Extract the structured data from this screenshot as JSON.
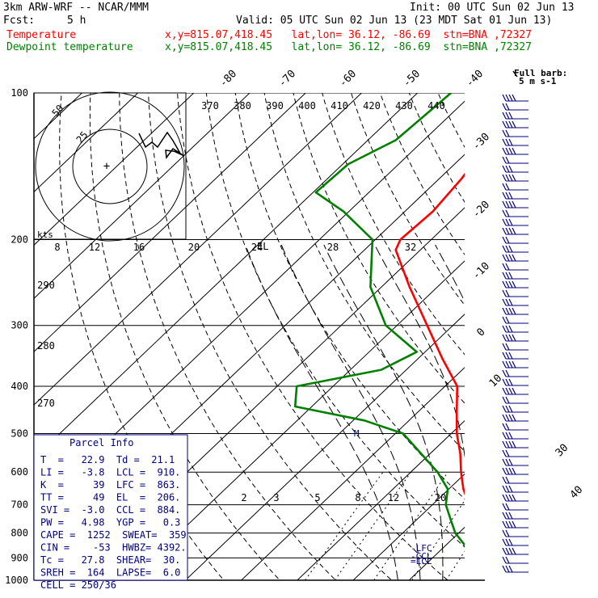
{
  "header": {
    "model": "3km ARW-WRF -- NCAR/MMM",
    "init": "Init: 00 UTC Sun 02 Jun 13",
    "fcst_label": "Fcst:",
    "fcst_value": "5 h",
    "valid": "Valid: 05 UTC Sun 02 Jun 13 (23 MDT Sat 01 Jun 13)",
    "temp_label": "Temperature",
    "temp_loc": "x,y=815.07,418.45   lat,lon= 36.12, -86.69  stn=BNA ,72327",
    "dew_label": "Dewpoint temperature",
    "dew_loc": "x,y=815.07,418.45   lat,lon= 36.12, -86.69  stn=BNA ,72327"
  },
  "colors": {
    "temperature": "#ff0000",
    "dewpoint": "#008000",
    "info": "#000080",
    "grid": "#000000"
  },
  "chart_data": {
    "type": "skew-t",
    "pressure_levels": [
      "100",
      "200",
      "300",
      "400",
      "500",
      "600",
      "700",
      "800",
      "900",
      "1000"
    ],
    "top_labels": [
      "-80",
      "-70",
      "-60",
      "-50",
      "-40"
    ],
    "right_labels": [
      "-30",
      "-20",
      "-10",
      "0",
      "10",
      "30",
      "40"
    ],
    "theta_labels": [
      "370",
      "380",
      "390",
      "400",
      "410",
      "420",
      "430",
      "440"
    ],
    "theta_left_labels": [
      "290",
      "280",
      "270"
    ],
    "hodo_speed_labels": [
      "8",
      "12",
      "16",
      "20",
      "24",
      "28",
      "32"
    ],
    "hodo_units": "kts",
    "hodo_rings": [
      "50",
      "25"
    ],
    "mixing_labels": [
      "2",
      "3",
      "5",
      "8",
      "12",
      "20"
    ],
    "barb_legend": [
      "Full barb:",
      "5 m s-1"
    ],
    "markers": {
      "el": "EL",
      "lfc": "LFC",
      "lcl": "LCL",
      "ccl": "CCL",
      "m": "M"
    },
    "temperature": [
      {
        "p": 1000,
        "t": 21.6
      },
      {
        "p": 970,
        "t": 22.9
      },
      {
        "p": 950,
        "t": 22.0
      },
      {
        "p": 925,
        "t": 20.6
      },
      {
        "p": 900,
        "t": 18.6
      },
      {
        "p": 850,
        "t": 15.4
      },
      {
        "p": 800,
        "t": 12.4
      },
      {
        "p": 750,
        "t": 9.6
      },
      {
        "p": 700,
        "t": 6.6
      },
      {
        "p": 650,
        "t": 2.6
      },
      {
        "p": 600,
        "t": -1.0
      },
      {
        "p": 550,
        "t": -4.6
      },
      {
        "p": 500,
        "t": -9.0
      },
      {
        "p": 450,
        "t": -13.2
      },
      {
        "p": 400,
        "t": -17.8
      },
      {
        "p": 350,
        "t": -25.8
      },
      {
        "p": 300,
        "t": -34.6
      },
      {
        "p": 250,
        "t": -45.0
      },
      {
        "p": 210,
        "t": -54.4
      },
      {
        "p": 200,
        "t": -55.5
      },
      {
        "p": 175,
        "t": -55.0
      },
      {
        "p": 150,
        "t": -56.0
      },
      {
        "p": 125,
        "t": -58.0
      },
      {
        "p": 100,
        "t": -63.5
      }
    ],
    "dewpoint": [
      {
        "p": 970,
        "t": 21.1
      },
      {
        "p": 950,
        "t": 20.2
      },
      {
        "p": 900,
        "t": 17.0
      },
      {
        "p": 850,
        "t": 13.6
      },
      {
        "p": 800,
        "t": 9.4
      },
      {
        "p": 750,
        "t": 6.0
      },
      {
        "p": 700,
        "t": 2.4
      },
      {
        "p": 650,
        "t": -0.2
      },
      {
        "p": 600,
        "t": -5.2
      },
      {
        "p": 550,
        "t": -11.6
      },
      {
        "p": 500,
        "t": -18.6
      },
      {
        "p": 470,
        "t": -28.0
      },
      {
        "p": 440,
        "t": -43.0
      },
      {
        "p": 400,
        "t": -46.5
      },
      {
        "p": 370,
        "t": -34.5
      },
      {
        "p": 340,
        "t": -31.5
      },
      {
        "p": 300,
        "t": -42.0
      },
      {
        "p": 250,
        "t": -52.0
      },
      {
        "p": 200,
        "t": -60.5
      },
      {
        "p": 175,
        "t": -71.0
      },
      {
        "p": 160,
        "t": -79.5
      },
      {
        "p": 140,
        "t": -79.0
      },
      {
        "p": 125,
        "t": -75.0
      },
      {
        "p": 100,
        "t": -74.0
      }
    ]
  },
  "parcel_info": {
    "title": "Parcel Info",
    "rows": [
      "T  =   22.9  Td =  21.1",
      "LI =   -3.8  LCL =  910.",
      "K  =     39  LFC =  863.",
      "TT =     49  EL  =  206.",
      "SVI =  -3.0  CCL =  884.",
      "PW =   4.98  YGP =   0.3",
      "CAPE =  1252  SWEAT=  359",
      "CIN =    -53  HWBZ= 4392.",
      "Tc =   27.8  SHEAR=  30.",
      "SREH =  164  LAPSE=  6.0",
      "CELL = 250/36"
    ]
  }
}
